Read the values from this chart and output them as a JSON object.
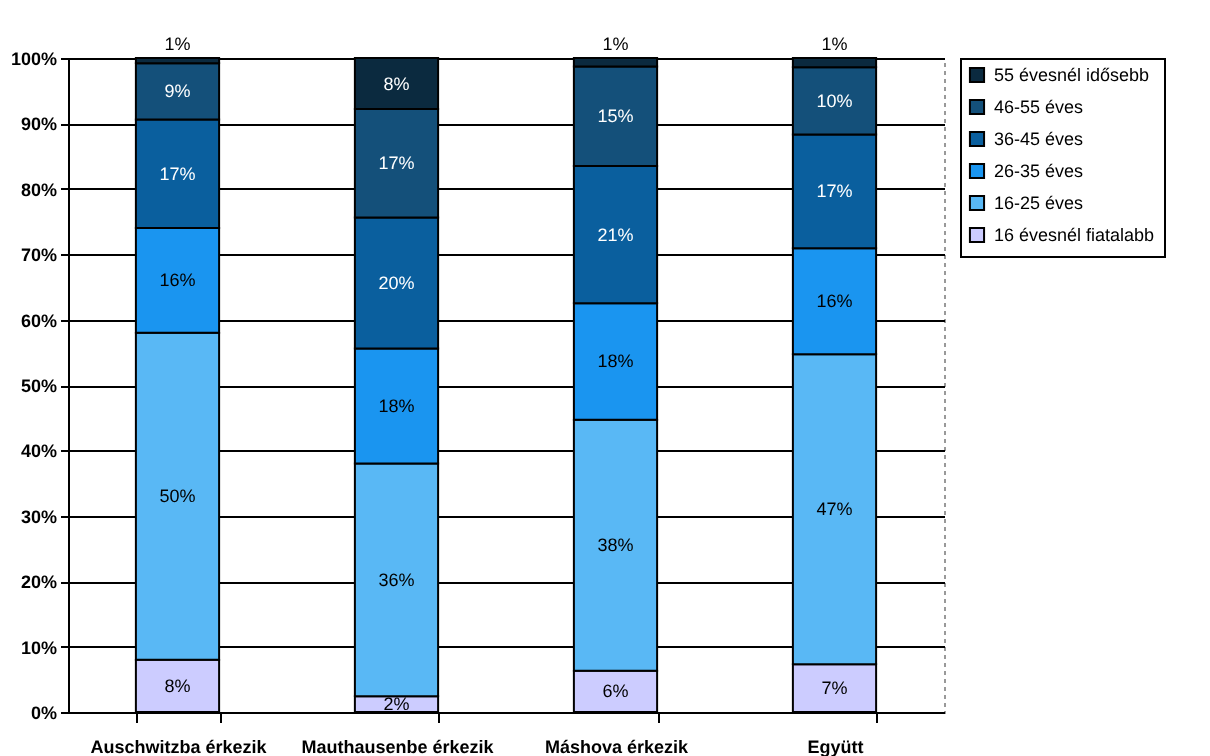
{
  "chart_data": {
    "type": "bar",
    "stacked": true,
    "categories": [
      "Auschwitzba érkezik",
      "Mauthausenbe érkezik",
      "Máshova érkezik",
      "Együtt"
    ],
    "series": [
      {
        "name": "16 évesnél fiatalabb",
        "color": "#ccccff",
        "values": [
          8,
          2.4,
          6.3,
          7.3
        ],
        "value_labels": [
          "8%",
          "2%",
          "6%",
          "7%"
        ]
      },
      {
        "name": "16-25 éves",
        "color": "#59b8f5",
        "values": [
          50,
          35.6,
          38.4,
          47.4
        ],
        "value_labels": [
          "50%",
          "36%",
          "38%",
          "47%"
        ]
      },
      {
        "name": "26-35 éves",
        "color": "#1a95f0",
        "values": [
          16,
          17.6,
          17.8,
          16.2
        ],
        "value_labels": [
          "16%",
          "18%",
          "18%",
          "16%"
        ]
      },
      {
        "name": "36-45 éves",
        "color": "#0a5f9e",
        "values": [
          16.6,
          20,
          21,
          17.4
        ],
        "value_labels": [
          "17%",
          "20%",
          "21%",
          "17%"
        ]
      },
      {
        "name": "46-55 éves",
        "color": "#14507a",
        "values": [
          8.6,
          16.6,
          15.2,
          10.3
        ],
        "value_labels": [
          "9%",
          "17%",
          "15%",
          "10%"
        ]
      },
      {
        "name": "55 évesnél idősebb",
        "color": "#0b2a3f",
        "values": [
          0.8,
          7.8,
          1.3,
          1.4
        ],
        "value_labels": [
          "1%",
          "8%",
          "1%",
          "1%"
        ]
      }
    ],
    "ylim": [
      0,
      100
    ],
    "yticks": [
      {
        "value": 0,
        "label": "0%"
      },
      {
        "value": 10,
        "label": "10%"
      },
      {
        "value": 20,
        "label": "20%"
      },
      {
        "value": 30,
        "label": "30%"
      },
      {
        "value": 40,
        "label": "40%"
      },
      {
        "value": 50,
        "label": "50%"
      },
      {
        "value": 60,
        "label": "60%"
      },
      {
        "value": 70,
        "label": "70%"
      },
      {
        "value": 80,
        "label": "80%"
      },
      {
        "value": 90,
        "label": "90%"
      },
      {
        "value": 100,
        "label": "100%"
      }
    ],
    "grid": "y",
    "legend": "right"
  }
}
